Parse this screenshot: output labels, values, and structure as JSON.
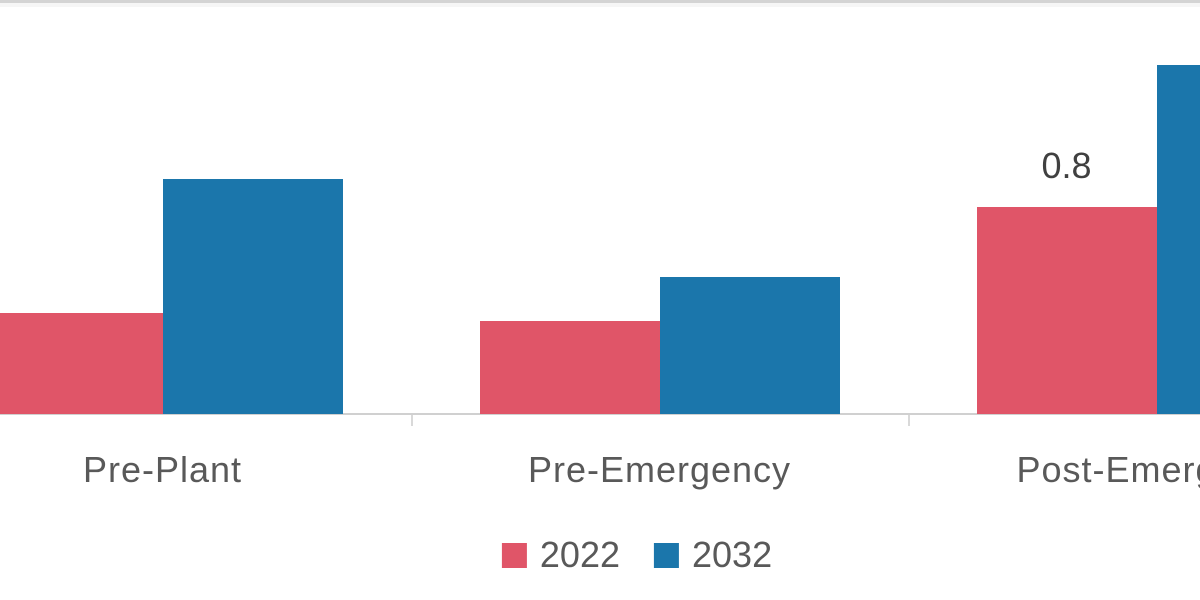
{
  "chart_data": {
    "type": "bar",
    "categories": [
      "Pre-Plant",
      "Pre-Emergency",
      "Post-Emergency"
    ],
    "series": [
      {
        "name": "2022",
        "color": "#e05568",
        "values": [
          0.39,
          0.36,
          0.8
        ],
        "labels": [
          "",
          "",
          "0.8"
        ]
      },
      {
        "name": "2032",
        "color": "#1b76ab",
        "values": [
          0.91,
          0.53,
          1.35
        ],
        "labels": [
          "",
          "",
          ""
        ]
      }
    ],
    "title": "",
    "xlabel": "",
    "ylabel": "",
    "grid": false,
    "y_axis_visible": false,
    "legend_position": "bottom",
    "axis_line_color": "#d0d0d0",
    "tick_color": "#d9d9d9",
    "category_label_color": "#595959",
    "data_label_color": "#404040"
  }
}
